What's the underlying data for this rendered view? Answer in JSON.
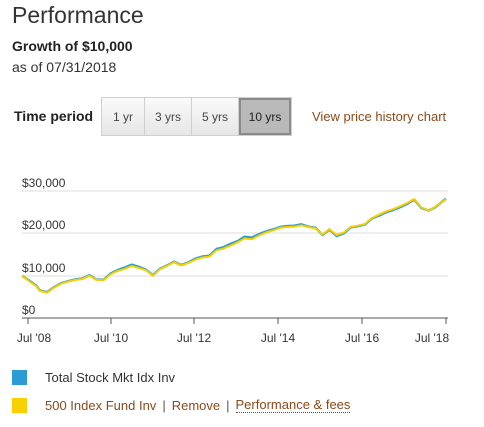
{
  "header": {
    "title": "Performance",
    "growth_title": "Growth of $10,000",
    "as_of": "as of 07/31/2018"
  },
  "time_period": {
    "label": "Time period",
    "options": [
      "1 yr",
      "3 yrs",
      "5 yrs",
      "10 yrs"
    ],
    "selected": "10 yrs",
    "history_link": "View price history chart"
  },
  "colors": {
    "series_1": "#2b9bd6",
    "series_2": "#f7d000",
    "link": "#8a4a1a",
    "grid": "#dddddd"
  },
  "chart_data": {
    "type": "line",
    "y_ticks": [
      "$30,000",
      "$20,000",
      "$10,000",
      "$0"
    ],
    "x_ticks": [
      "Jul '08",
      "Jul '10",
      "Jul '12",
      "Jul '14",
      "Jul '16",
      "Jul '18"
    ],
    "ylim": [
      0,
      30000
    ],
    "x": [
      2008.58,
      2008.75,
      2008.92,
      2009.0,
      2009.17,
      2009.33,
      2009.5,
      2009.67,
      2009.83,
      2010.0,
      2010.17,
      2010.33,
      2010.5,
      2010.67,
      2010.83,
      2011.0,
      2011.17,
      2011.33,
      2011.5,
      2011.67,
      2011.83,
      2012.0,
      2012.17,
      2012.33,
      2012.5,
      2012.67,
      2012.83,
      2013.0,
      2013.17,
      2013.33,
      2013.5,
      2013.67,
      2013.83,
      2014.0,
      2014.17,
      2014.33,
      2014.5,
      2014.67,
      2014.83,
      2015.0,
      2015.17,
      2015.33,
      2015.5,
      2015.67,
      2015.83,
      2016.0,
      2016.17,
      2016.33,
      2016.5,
      2016.67,
      2016.83,
      2017.0,
      2017.17,
      2017.33,
      2017.5,
      2017.67,
      2017.83,
      2018.0,
      2018.17,
      2018.33,
      2018.58
    ],
    "series": [
      {
        "name": "Total Stock Mkt Idx Inv",
        "values": [
          10000,
          8800,
          7600,
          6500,
          6100,
          7200,
          8200,
          8700,
          9100,
          9300,
          10100,
          9100,
          9000,
          10500,
          11300,
          11900,
          12600,
          12100,
          11400,
          10100,
          11600,
          12400,
          13300,
          12500,
          13100,
          14000,
          14500,
          14700,
          16300,
          16700,
          17500,
          18200,
          19200,
          19000,
          19800,
          20400,
          20900,
          21500,
          21700,
          21800,
          22100,
          21600,
          21300,
          19600,
          20900,
          19400,
          20000,
          21400,
          21700,
          22100,
          23500,
          24200,
          25000,
          25500,
          26200,
          27000,
          28000,
          26000,
          25400,
          26200,
          28200
        ]
      },
      {
        "name": "500 Index Fund Inv",
        "values": [
          10000,
          8700,
          7500,
          6400,
          6000,
          7100,
          8100,
          8600,
          9000,
          9200,
          10000,
          9000,
          8900,
          10300,
          11100,
          11600,
          12300,
          11800,
          11300,
          10000,
          11500,
          12300,
          13200,
          12400,
          13000,
          13800,
          14300,
          14500,
          16000,
          16400,
          17100,
          17900,
          18800,
          18600,
          19500,
          20200,
          20700,
          21300,
          21500,
          21600,
          21900,
          21500,
          21200,
          19700,
          21000,
          19600,
          20200,
          21500,
          21800,
          22200,
          23600,
          24400,
          25200,
          25700,
          26400,
          27200,
          28100,
          26100,
          25400,
          26300,
          28100
        ]
      }
    ]
  },
  "legend": {
    "item1": "Total Stock Mkt Idx Inv",
    "item2": "500 Index Fund Inv",
    "remove": "Remove",
    "separator": "|",
    "performance_fees": "Performance & fees"
  }
}
